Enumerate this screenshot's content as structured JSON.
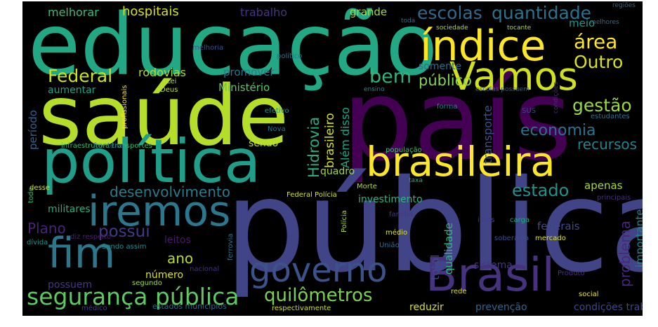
{
  "words": [
    {
      "text": "pública",
      "color": "#414487"
    },
    {
      "text": "educação",
      "color": "#22a884"
    },
    {
      "text": "país",
      "color": "#440154"
    },
    {
      "text": "saúde",
      "color": "#b5de2b"
    },
    {
      "text": "política",
      "color": "#1f9e89"
    },
    {
      "text": "índice",
      "color": "#fde725"
    },
    {
      "text": "brasileira",
      "color": "#fde725"
    },
    {
      "text": "Vamos",
      "color": "#d0e11c"
    },
    {
      "text": "iremos",
      "color": "#2a788e"
    },
    {
      "text": "fim",
      "color": "#2a788e"
    },
    {
      "text": "Brasil",
      "color": "#46327e"
    },
    {
      "text": "governo",
      "color": "#3b528b"
    },
    {
      "text": "segurança pública",
      "color": "#5ec962"
    },
    {
      "text": "quilômetros",
      "color": "#7ad151"
    },
    {
      "text": "escolas",
      "color": "#31688e"
    },
    {
      "text": "quantidade",
      "color": "#2c728e"
    },
    {
      "text": "área",
      "color": "#fde725"
    },
    {
      "text": "Outro",
      "color": "#d8e219"
    },
    {
      "text": "Federal",
      "color": "#cae11f"
    },
    {
      "text": "bem",
      "color": "#2fb47c"
    },
    {
      "text": "público",
      "color": "#86d549"
    },
    {
      "text": "gestão",
      "color": "#9bd93c"
    },
    {
      "text": "economia",
      "color": "#2c728e"
    },
    {
      "text": "recursos",
      "color": "#26828e"
    },
    {
      "text": "desenvolvimento",
      "color": "#287c8e"
    },
    {
      "text": "estado",
      "color": "#21918c"
    },
    {
      "text": "possui",
      "color": "#443a83"
    },
    {
      "text": "Plano",
      "color": "#482475"
    },
    {
      "text": "ano",
      "color": "#b8de29"
    },
    {
      "text": "Hidrovia",
      "color": "#29af7f"
    },
    {
      "text": "brasileiro",
      "color": "#d8e219"
    },
    {
      "text": "Além disso",
      "color": "#20a486"
    },
    {
      "text": "transporte",
      "color": "#3b528b"
    },
    {
      "text": "problema",
      "color": "#482878"
    },
    {
      "text": "importante",
      "color": "#26828e"
    },
    {
      "text": "período",
      "color": "#33638d"
    },
    {
      "text": "total",
      "color": "#3e4a89"
    },
    {
      "text": "qualidade",
      "color": "#35b779"
    },
    {
      "text": "profissionais",
      "color": "#fde725"
    },
    {
      "text": "condições",
      "color": "#472d7b"
    },
    {
      "text": "Polícia",
      "color": "#a8db34"
    },
    {
      "text": "todo",
      "color": "#3aba76"
    },
    {
      "text": "ferrovia",
      "color": "#2c728e"
    },
    {
      "text": "apenas",
      "color": "#a5db36"
    },
    {
      "text": "federais",
      "color": "#3e4a89"
    },
    {
      "text": "melhorar",
      "color": "#3dbc74"
    },
    {
      "text": "hospitais",
      "color": "#d5e21a"
    },
    {
      "text": "trabalho",
      "color": "#463480"
    },
    {
      "text": "grande",
      "color": "#a2da37"
    },
    {
      "text": "meio",
      "color": "#1e9b8a"
    },
    {
      "text": "rodovias",
      "color": "#addc30"
    },
    {
      "text": "promover",
      "color": "#2a788e"
    },
    {
      "text": "Ministério",
      "color": "#5ec962"
    },
    {
      "text": "aumentar",
      "color": "#1fa187"
    },
    {
      "text": "somente",
      "color": "#2e6e8e"
    },
    {
      "text": "quadro",
      "color": "#9dd93b"
    },
    {
      "text": "sendo",
      "color": "#bddf26"
    },
    {
      "text": "investimento",
      "color": "#2fb47c"
    },
    {
      "text": "sistema",
      "color": "#453781"
    },
    {
      "text": "militares",
      "color": "#27ad81"
    },
    {
      "text": "leitos",
      "color": "#48186a"
    },
    {
      "text": "número",
      "color": "#dde318"
    },
    {
      "text": "possuem",
      "color": "#453882"
    },
    {
      "text": "reduzir",
      "color": "#dae319"
    },
    {
      "text": "prevenção",
      "color": "#32658e"
    },
    {
      "text": "condições trabalho",
      "color": "#3f4788"
    },
    {
      "text": "melhoria",
      "color": "#3b518b"
    },
    {
      "text": "político",
      "color": "#2c728e"
    },
    {
      "text": "Lei",
      "color": "#b5de2b"
    },
    {
      "text": "Deus",
      "color": "#c0df25"
    },
    {
      "text": "ensino",
      "color": "#24878e"
    },
    {
      "text": "efetivo",
      "color": "#21918c"
    },
    {
      "text": "Nova",
      "color": "#2b748e"
    },
    {
      "text": "forma",
      "color": "#26828e"
    },
    {
      "text": "SUS",
      "color": "#3e4989"
    },
    {
      "text": "estudantes",
      "color": "#2c738e"
    },
    {
      "text": "infraestrutura transportes",
      "color": "#38b977"
    },
    {
      "text": "fronteira",
      "color": "#2e6d8e"
    },
    {
      "text": "população",
      "color": "#3fbc73"
    },
    {
      "text": "taxa",
      "color": "#22a785"
    },
    {
      "text": "Morte",
      "color": "#b2dd2d"
    },
    {
      "text": "Federal Polícia",
      "color": "#d2e21b"
    },
    {
      "text": "itens",
      "color": "#433e85"
    },
    {
      "text": "carga",
      "color": "#23a983"
    },
    {
      "text": "família",
      "color": "#453781"
    },
    {
      "text": "médio",
      "color": "#e2e418"
    },
    {
      "text": "principais",
      "color": "#472f7d"
    },
    {
      "text": "soberania",
      "color": "#3e4c8a"
    },
    {
      "text": "dívida",
      "color": "#20928c"
    },
    {
      "text": "desse",
      "color": "#d5e21a"
    },
    {
      "text": "diz respeito",
      "color": "#482173"
    },
    {
      "text": "Sendo assim",
      "color": "#228c8d"
    },
    {
      "text": "União",
      "color": "#2e6f8e"
    },
    {
      "text": "mercado",
      "color": "#e2e418"
    },
    {
      "text": "nacional",
      "color": "#46307e"
    },
    {
      "text": "Produto",
      "color": "#46317e"
    },
    {
      "text": "segundo",
      "color": "#a0da39"
    },
    {
      "text": "rede",
      "color": "#dde318"
    },
    {
      "text": "social",
      "color": "#e5e419"
    },
    {
      "text": "médico",
      "color": "#424086"
    },
    {
      "text": "estados municípios",
      "color": "#31688e"
    },
    {
      "text": "respectivamente",
      "color": "#cde11d"
    },
    {
      "text": "regiões",
      "color": "#30678d"
    },
    {
      "text": "melhores",
      "color": "#2f6c8e"
    },
    {
      "text": "toda",
      "color": "#2e6e8e"
    },
    {
      "text": "sociedade",
      "color": "#a8db34"
    },
    {
      "text": "tocante",
      "color": "#a5db36"
    },
    {
      "text": "escolas possuem",
      "color": "#355f8d"
    }
  ]
}
